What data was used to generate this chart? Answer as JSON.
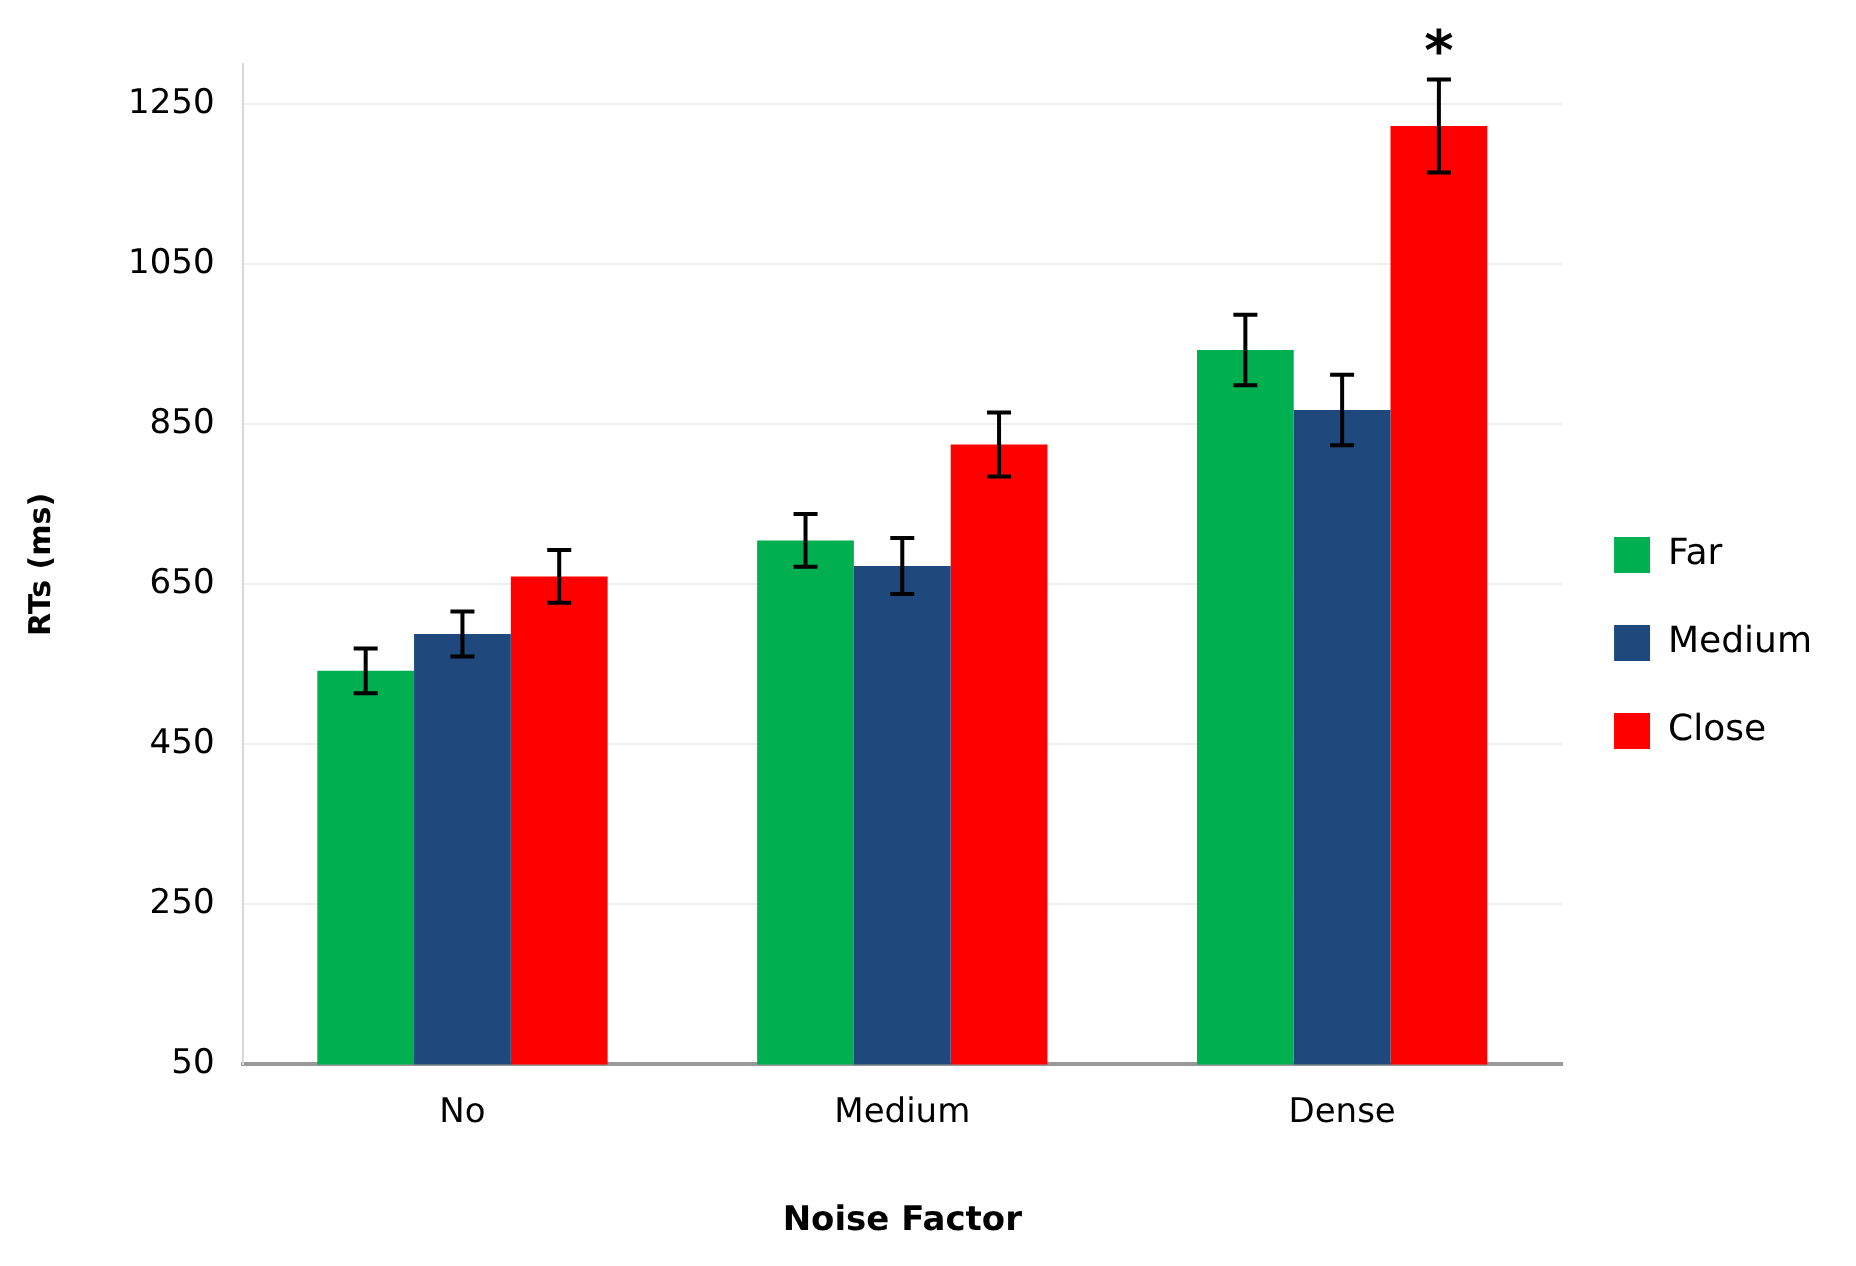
{
  "chart_data": {
    "type": "bar",
    "xlabel": "Noise Factor",
    "ylabel": "RTs (ms)",
    "categories": [
      "No",
      "Medium",
      "Dense"
    ],
    "series": [
      {
        "name": "Far",
        "color": "#00b050",
        "values": [
          542,
          705,
          943
        ],
        "errors": [
          28,
          33,
          44
        ]
      },
      {
        "name": "Medium",
        "color": "#1f497d",
        "values": [
          588,
          673,
          868
        ],
        "errors": [
          28,
          35,
          44
        ]
      },
      {
        "name": "Close",
        "color": "#ff0000",
        "values": [
          660,
          825,
          1223
        ],
        "errors": [
          33,
          40,
          58
        ]
      }
    ],
    "ylim": [
      50,
      1300
    ],
    "yticks": [
      50,
      250,
      450,
      650,
      850,
      1050,
      1250
    ],
    "grid": "y",
    "legend": "right",
    "annotations": [
      "*"
    ]
  }
}
